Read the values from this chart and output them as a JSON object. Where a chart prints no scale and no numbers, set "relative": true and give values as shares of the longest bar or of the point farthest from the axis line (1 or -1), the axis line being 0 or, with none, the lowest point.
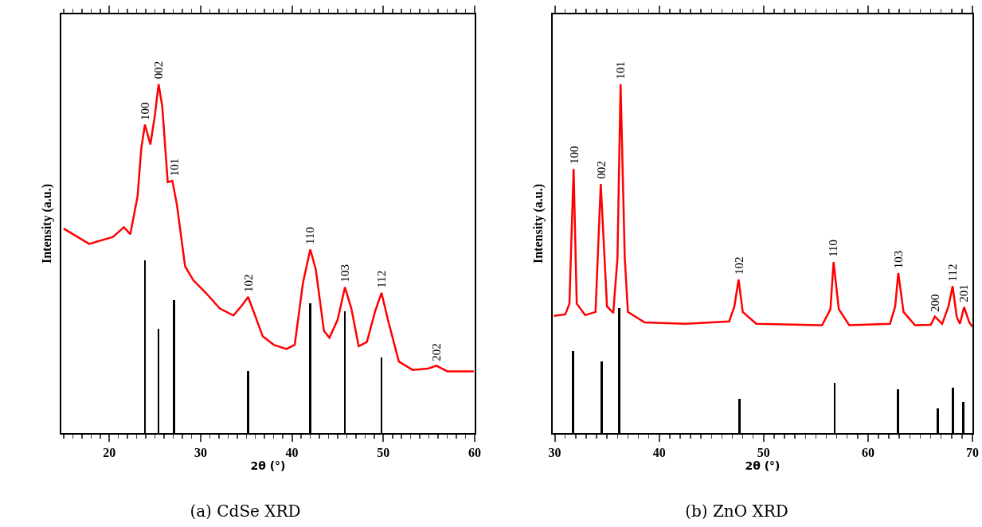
{
  "chart_data": [
    {
      "type": "line",
      "title": "(a) CdSe XRD",
      "xlabel": "2θ (°)",
      "ylabel": "Intensity (a.u.)",
      "relative": true,
      "tick_labels": "x",
      "grid": false,
      "xlim": [
        14.75,
        60
      ],
      "xticks": [
        {
          "value": 15,
          "label": null
        },
        {
          "value": 16,
          "label": null
        },
        {
          "value": 17,
          "label": null
        },
        {
          "value": 18,
          "label": null
        },
        {
          "value": 19,
          "label": null
        },
        20,
        {
          "value": 21,
          "label": null
        },
        {
          "value": 22,
          "label": null
        },
        {
          "value": 23,
          "label": null
        },
        {
          "value": 24,
          "label": null
        },
        {
          "value": 25,
          "label": null
        },
        {
          "value": 26,
          "label": null
        },
        {
          "value": 27,
          "label": null
        },
        {
          "value": 28,
          "label": null
        },
        {
          "value": 29,
          "label": null
        },
        30,
        {
          "value": 31,
          "label": null
        },
        {
          "value": 32,
          "label": null
        },
        {
          "value": 33,
          "label": null
        },
        {
          "value": 34,
          "label": null
        },
        {
          "value": 35,
          "label": null
        },
        {
          "value": 36,
          "label": null
        },
        {
          "value": 37,
          "label": null
        },
        {
          "value": 38,
          "label": null
        },
        {
          "value": 39,
          "label": null
        },
        40,
        {
          "value": 41,
          "label": null
        },
        {
          "value": 42,
          "label": null
        },
        {
          "value": 43,
          "label": null
        },
        {
          "value": 44,
          "label": null
        },
        {
          "value": 45,
          "label": null
        },
        {
          "value": 46,
          "label": null
        },
        {
          "value": 47,
          "label": null
        },
        {
          "value": 48,
          "label": null
        },
        {
          "value": 49,
          "label": null
        },
        50,
        {
          "value": 51,
          "label": null
        },
        {
          "value": 52,
          "label": null
        },
        {
          "value": 53,
          "label": null
        },
        {
          "value": 54,
          "label": null
        },
        {
          "value": 55,
          "label": null
        },
        {
          "value": 56,
          "label": null
        },
        {
          "value": 57,
          "label": null
        },
        {
          "value": 58,
          "label": null
        },
        {
          "value": 59,
          "label": null
        },
        60
      ],
      "series": [
        {
          "color": "#ff0000",
          "x": [
            15.0,
            17.8,
            20.4,
            21.6,
            22.3,
            23.1,
            23.5,
            23.9,
            24.5,
            25.0,
            25.4,
            25.8,
            26.4,
            26.9,
            27.4,
            28.3,
            29.2,
            30.7,
            32.1,
            33.6,
            34.5,
            35.2,
            35.9,
            36.8,
            38.0,
            39.4,
            40.3,
            41.2,
            42.0,
            42.6,
            43.5,
            44.1,
            45.0,
            45.8,
            46.5,
            47.3,
            48.2,
            49.1,
            49.8,
            50.5,
            51.7,
            53.2,
            54.9,
            55.8,
            57.0,
            59.9
          ],
          "values": [
            0.586,
            0.542,
            0.562,
            0.59,
            0.57,
            0.679,
            0.815,
            0.884,
            0.827,
            0.912,
            1.0,
            0.936,
            0.719,
            0.723,
            0.655,
            0.478,
            0.438,
            0.398,
            0.357,
            0.337,
            0.365,
            0.39,
            0.341,
            0.277,
            0.253,
            0.241,
            0.253,
            0.43,
            0.526,
            0.47,
            0.293,
            0.273,
            0.325,
            0.418,
            0.357,
            0.249,
            0.261,
            0.349,
            0.402,
            0.325,
            0.205,
            0.181,
            0.185,
            0.193,
            0.177,
            0.177
          ]
        },
        {
          "type": "bar",
          "color": "#000000",
          "x": [
            23.9,
            25.4,
            27.1,
            35.2,
            42.0,
            45.8,
            49.8
          ],
          "values": [
            0.496,
            0.299,
            0.382,
            0.177,
            0.372,
            0.349,
            0.217
          ]
        }
      ],
      "annotations": [
        {
          "text": "100",
          "x": 23.9,
          "y": 0.884
        },
        {
          "text": "002",
          "x": 25.4,
          "y": 1.0
        },
        {
          "text": "101",
          "x": 27.1,
          "y": 0.723
        },
        {
          "text": "102",
          "x": 35.2,
          "y": 0.39
        },
        {
          "text": "110",
          "x": 42.0,
          "y": 0.526
        },
        {
          "text": "103",
          "x": 45.8,
          "y": 0.418
        },
        {
          "text": "112",
          "x": 49.8,
          "y": 0.402
        },
        {
          "text": "202",
          "x": 55.8,
          "y": 0.193
        }
      ]
    },
    {
      "type": "line",
      "title": "(b) ZnO XRD",
      "xlabel": "2θ (°)",
      "ylabel": "Intensity (a.u.)",
      "relative": true,
      "tick_labels": "x",
      "grid": false,
      "xlim": [
        29.8,
        70
      ],
      "xticks": [
        30,
        {
          "value": 31,
          "label": null
        },
        {
          "value": 32,
          "label": null
        },
        {
          "value": 33,
          "label": null
        },
        {
          "value": 34,
          "label": null
        },
        {
          "value": 35,
          "label": null
        },
        {
          "value": 36,
          "label": null
        },
        {
          "value": 37,
          "label": null
        },
        {
          "value": 38,
          "label": null
        },
        {
          "value": 39,
          "label": null
        },
        40,
        {
          "value": 41,
          "label": null
        },
        {
          "value": 42,
          "label": null
        },
        {
          "value": 43,
          "label": null
        },
        {
          "value": 44,
          "label": null
        },
        {
          "value": 45,
          "label": null
        },
        {
          "value": 46,
          "label": null
        },
        {
          "value": 47,
          "label": null
        },
        {
          "value": 48,
          "label": null
        },
        {
          "value": 49,
          "label": null
        },
        50,
        {
          "value": 51,
          "label": null
        },
        {
          "value": 52,
          "label": null
        },
        {
          "value": 53,
          "label": null
        },
        {
          "value": 54,
          "label": null
        },
        {
          "value": 55,
          "label": null
        },
        {
          "value": 56,
          "label": null
        },
        {
          "value": 57,
          "label": null
        },
        {
          "value": 58,
          "label": null
        },
        {
          "value": 59,
          "label": null
        },
        60,
        {
          "value": 61,
          "label": null
        },
        {
          "value": 62,
          "label": null
        },
        {
          "value": 63,
          "label": null
        },
        {
          "value": 64,
          "label": null
        },
        {
          "value": 65,
          "label": null
        },
        {
          "value": 66,
          "label": null
        },
        {
          "value": 67,
          "label": null
        },
        {
          "value": 68,
          "label": null
        },
        {
          "value": 69,
          "label": null
        },
        70
      ],
      "series": [
        {
          "color": "#ff0000",
          "x": [
            29.9,
            31.0,
            31.4,
            31.8,
            32.1,
            32.9,
            33.9,
            34.4,
            35.0,
            35.6,
            36.0,
            36.3,
            36.7,
            37.0,
            38.6,
            42.5,
            46.7,
            47.2,
            47.6,
            48.0,
            49.3,
            55.6,
            56.4,
            56.7,
            57.2,
            58.2,
            62.1,
            62.6,
            62.9,
            63.4,
            64.5,
            66.0,
            66.4,
            67.1,
            67.7,
            68.1,
            68.5,
            68.8,
            69.2,
            69.7,
            70.0
          ],
          "values": [
            0.336,
            0.34,
            0.371,
            0.757,
            0.371,
            0.338,
            0.347,
            0.714,
            0.363,
            0.344,
            0.502,
            1.0,
            0.502,
            0.347,
            0.317,
            0.313,
            0.32,
            0.363,
            0.44,
            0.347,
            0.313,
            0.309,
            0.355,
            0.49,
            0.355,
            0.309,
            0.313,
            0.363,
            0.459,
            0.347,
            0.309,
            0.31,
            0.334,
            0.313,
            0.363,
            0.421,
            0.332,
            0.313,
            0.361,
            0.317,
            0.305
          ]
        },
        {
          "type": "bar",
          "color": "#000000",
          "x": [
            31.75,
            34.5,
            36.2,
            47.7,
            56.8,
            62.9,
            66.7,
            68.1,
            69.1
          ],
          "values": [
            0.236,
            0.205,
            0.358,
            0.099,
            0.143,
            0.126,
            0.071,
            0.129,
            0.089
          ]
        }
      ],
      "annotations": [
        {
          "text": "100",
          "x": 31.8,
          "y": 0.757
        },
        {
          "text": "002",
          "x": 34.4,
          "y": 0.714
        },
        {
          "text": "101",
          "x": 36.3,
          "y": 1.0
        },
        {
          "text": "102",
          "x": 47.6,
          "y": 0.44
        },
        {
          "text": "110",
          "x": 56.7,
          "y": 0.49
        },
        {
          "text": "103",
          "x": 62.9,
          "y": 0.459
        },
        {
          "text": "200",
          "x": 66.4,
          "y": 0.334
        },
        {
          "text": "112",
          "x": 68.1,
          "y": 0.421
        },
        {
          "text": "201",
          "x": 69.2,
          "y": 0.361
        }
      ]
    }
  ]
}
